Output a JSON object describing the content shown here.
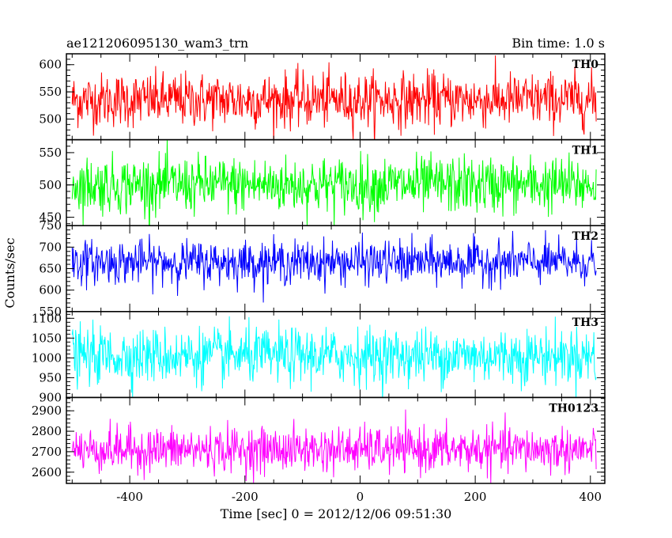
{
  "header": {
    "left_title": "ae121206095130_wam3_trn",
    "right_title": "Bin time: 1.0 s"
  },
  "chart_data": {
    "type": "line",
    "title": "ae121206095130_wam3_trn",
    "subtitle": "Bin time: 1.0 s",
    "xlabel": "Time [sec] 0 = 2012/12/06 09:51:30",
    "ylabel": "Counts/sec",
    "xlim": [
      -510,
      425
    ],
    "x_ticks": [
      -400,
      -200,
      0,
      200,
      400
    ],
    "x_data_range": [
      -500,
      410
    ],
    "bin_time_s": 1.0,
    "grid": false,
    "legend": "none",
    "series": [
      {
        "name": "TH0",
        "color": "#ff0000",
        "ylim": [
          462,
          620
        ],
        "y_ticks": [
          500,
          550,
          600
        ],
        "mean": 535,
        "spread": 25
      },
      {
        "name": "TH1",
        "color": "#00ff00",
        "ylim": [
          437,
          570
        ],
        "y_ticks": [
          450,
          500,
          550
        ],
        "mean": 500,
        "spread": 22
      },
      {
        "name": "TH2",
        "color": "#0000ff",
        "ylim": [
          550,
          750
        ],
        "y_ticks": [
          550,
          600,
          650,
          700,
          750
        ],
        "mean": 665,
        "spread": 25
      },
      {
        "name": "TH3",
        "color": "#00ffff",
        "ylim": [
          900,
          1117
        ],
        "y_ticks": [
          900,
          950,
          1000,
          1050,
          1100
        ],
        "mean": 1005,
        "spread": 35
      },
      {
        "name": "TH0123",
        "color": "#ff00ff",
        "ylim": [
          2545,
          2965
        ],
        "y_ticks": [
          2600,
          2700,
          2800,
          2900
        ],
        "mean": 2710,
        "spread": 55
      }
    ]
  }
}
